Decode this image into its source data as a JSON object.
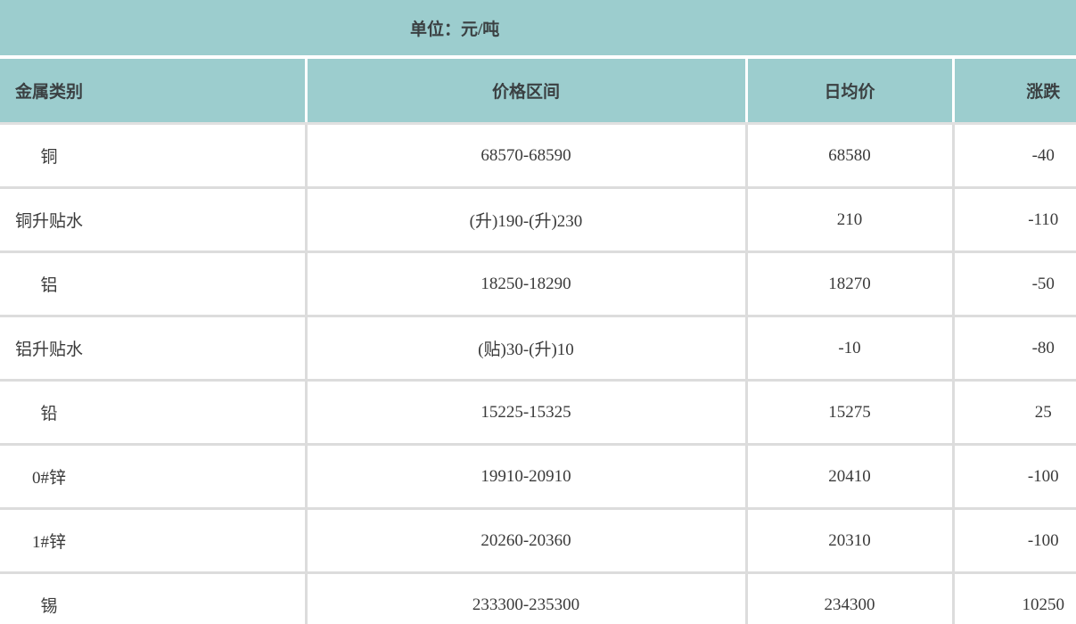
{
  "title": {
    "unit_label": "单位：元/吨"
  },
  "colors": {
    "accent_teal": "#9ccdce",
    "header_separator_white": "#ffffff",
    "row_divider_gray": "#dcdcdc",
    "text_dark": "#3a3a3a",
    "row_background": "#ffffff"
  },
  "table": {
    "headers": [
      "金属类别",
      "价格区间",
      "日均价",
      "涨跌"
    ],
    "rows": [
      {
        "metal": "铜",
        "range": "68570-68590",
        "avg": "68580",
        "change": "-40"
      },
      {
        "metal": "铜升贴水",
        "range": "(升)190-(升)230",
        "avg": "210",
        "change": "-110"
      },
      {
        "metal": "铝",
        "range": "18250-18290",
        "avg": "18270",
        "change": "-50"
      },
      {
        "metal": "铝升贴水",
        "range": "(贴)30-(升)10",
        "avg": "-10",
        "change": "-80"
      },
      {
        "metal": "铅",
        "range": "15225-15325",
        "avg": "15275",
        "change": "25"
      },
      {
        "metal": "0#锌",
        "range": "19910-20910",
        "avg": "20410",
        "change": "-100"
      },
      {
        "metal": "1#锌",
        "range": "20260-20360",
        "avg": "20310",
        "change": "-100"
      },
      {
        "metal": "锡",
        "range": "233300-235300",
        "avg": "234300",
        "change": "10250"
      }
    ]
  },
  "chart_data": {
    "type": "table",
    "title": "单位：元/吨",
    "columns": [
      "金属类别",
      "价格区间",
      "日均价",
      "涨跌"
    ],
    "rows": [
      [
        "铜",
        "68570-68590",
        68580,
        -40
      ],
      [
        "铜升贴水",
        "(升)190-(升)230",
        210,
        -110
      ],
      [
        "铝",
        "18250-18290",
        18270,
        -50
      ],
      [
        "铝升贴水",
        "(贴)30-(升)10",
        -10,
        -80
      ],
      [
        "铅",
        "15225-15325",
        15275,
        25
      ],
      [
        "0#锌",
        "19910-20910",
        20410,
        -100
      ],
      [
        "1#锌",
        "20260-20360",
        20310,
        -100
      ],
      [
        "锡",
        "233300-235300",
        234300,
        10250
      ]
    ],
    "layout": {
      "header_background": "#9ccdce",
      "title_bar_background": "#9ccdce",
      "column_alignments": [
        "center-left-block",
        "center",
        "center",
        "center"
      ],
      "right_column_clipped_by_viewport": true,
      "last_row_clipped_by_viewport": true
    }
  }
}
